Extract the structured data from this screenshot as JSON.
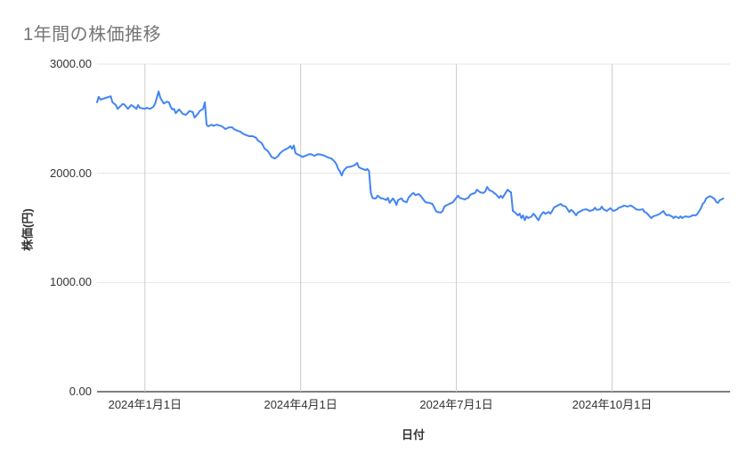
{
  "chart_data": {
    "type": "line",
    "title": "1年間の株価推移",
    "xlabel": "日付",
    "ylabel": "株価(円)",
    "ylim": [
      0,
      3000
    ],
    "xlim": [
      0,
      370
    ],
    "grid": true,
    "legend": false,
    "x_encoding": "days along the axis; 0 = left edge of plot (≈ early Dec 2023), 370 = right edge (≈ early Dec 2024)",
    "y_ticks": [
      {
        "value": 3000,
        "label": "3000.00"
      },
      {
        "value": 2000,
        "label": "2000.00"
      },
      {
        "value": 1000,
        "label": "1000.00"
      },
      {
        "value": 0,
        "label": "0.00"
      }
    ],
    "x_ticks": [
      {
        "day": 28,
        "label": "2024年1月1日"
      },
      {
        "day": 119,
        "label": "2024年4月1日"
      },
      {
        "day": 210,
        "label": "2024年7月1日"
      },
      {
        "day": 301,
        "label": "2024年10月1日"
      }
    ],
    "colors": {
      "line": "#4285f4",
      "title_text": "#757575",
      "tick_text": "#333333",
      "gridline_h": "#e4e4e4",
      "gridline_v": "#cccccc",
      "baseline": "#555555"
    },
    "series": [
      {
        "name": "株価",
        "color": "#4285f4",
        "points": [
          [
            0,
            2650
          ],
          [
            1,
            2700
          ],
          [
            2,
            2675
          ],
          [
            5,
            2690
          ],
          [
            8,
            2705
          ],
          [
            9,
            2650
          ],
          [
            11,
            2625
          ],
          [
            12,
            2590
          ],
          [
            15,
            2635
          ],
          [
            16,
            2630
          ],
          [
            18,
            2590
          ],
          [
            20,
            2625
          ],
          [
            21,
            2615
          ],
          [
            23,
            2590
          ],
          [
            24,
            2625
          ],
          [
            25,
            2600
          ],
          [
            28,
            2590
          ],
          [
            29,
            2600
          ],
          [
            31,
            2590
          ],
          [
            33,
            2610
          ],
          [
            34,
            2640
          ],
          [
            36,
            2750
          ],
          [
            37,
            2690
          ],
          [
            38,
            2665
          ],
          [
            39,
            2640
          ],
          [
            41,
            2655
          ],
          [
            42,
            2650
          ],
          [
            43,
            2610
          ],
          [
            44,
            2585
          ],
          [
            45,
            2590
          ],
          [
            46,
            2550
          ],
          [
            48,
            2585
          ],
          [
            50,
            2545
          ],
          [
            52,
            2535
          ],
          [
            54,
            2570
          ],
          [
            56,
            2560
          ],
          [
            57,
            2510
          ],
          [
            59,
            2545
          ],
          [
            60,
            2570
          ],
          [
            62,
            2590
          ],
          [
            63,
            2650
          ],
          [
            64,
            2445
          ],
          [
            65,
            2430
          ],
          [
            67,
            2445
          ],
          [
            68,
            2435
          ],
          [
            70,
            2445
          ],
          [
            72,
            2435
          ],
          [
            73,
            2430
          ],
          [
            75,
            2405
          ],
          [
            77,
            2420
          ],
          [
            79,
            2420
          ],
          [
            80,
            2405
          ],
          [
            82,
            2390
          ],
          [
            84,
            2380
          ],
          [
            85,
            2365
          ],
          [
            87,
            2350
          ],
          [
            89,
            2340
          ],
          [
            91,
            2340
          ],
          [
            93,
            2325
          ],
          [
            94,
            2300
          ],
          [
            96,
            2280
          ],
          [
            97,
            2255
          ],
          [
            98,
            2225
          ],
          [
            99,
            2215
          ],
          [
            100,
            2200
          ],
          [
            102,
            2150
          ],
          [
            104,
            2135
          ],
          [
            106,
            2160
          ],
          [
            107,
            2185
          ],
          [
            109,
            2210
          ],
          [
            111,
            2225
          ],
          [
            112,
            2235
          ],
          [
            113,
            2250
          ],
          [
            114,
            2225
          ],
          [
            115,
            2255
          ],
          [
            116,
            2185
          ],
          [
            117,
            2175
          ],
          [
            119,
            2160
          ],
          [
            120,
            2150
          ],
          [
            122,
            2160
          ],
          [
            124,
            2175
          ],
          [
            125,
            2175
          ],
          [
            127,
            2160
          ],
          [
            129,
            2175
          ],
          [
            131,
            2170
          ],
          [
            133,
            2160
          ],
          [
            135,
            2145
          ],
          [
            137,
            2135
          ],
          [
            139,
            2105
          ],
          [
            140,
            2080
          ],
          [
            141,
            2040
          ],
          [
            142,
            2015
          ],
          [
            143,
            1980
          ],
          [
            144,
            2020
          ],
          [
            145,
            2040
          ],
          [
            146,
            2055
          ],
          [
            148,
            2060
          ],
          [
            150,
            2070
          ],
          [
            151,
            2080
          ],
          [
            152,
            2095
          ],
          [
            153,
            2055
          ],
          [
            155,
            2040
          ],
          [
            157,
            2030
          ],
          [
            158,
            2040
          ],
          [
            159,
            2020
          ],
          [
            160,
            1820
          ],
          [
            161,
            1775
          ],
          [
            162,
            1770
          ],
          [
            163,
            1770
          ],
          [
            164,
            1795
          ],
          [
            166,
            1770
          ],
          [
            167,
            1770
          ],
          [
            169,
            1755
          ],
          [
            170,
            1775
          ],
          [
            171,
            1730
          ],
          [
            173,
            1770
          ],
          [
            174,
            1745
          ],
          [
            175,
            1710
          ],
          [
            176,
            1755
          ],
          [
            178,
            1770
          ],
          [
            179,
            1745
          ],
          [
            181,
            1735
          ],
          [
            182,
            1775
          ],
          [
            184,
            1810
          ],
          [
            185,
            1820
          ],
          [
            186,
            1800
          ],
          [
            188,
            1810
          ],
          [
            189,
            1795
          ],
          [
            191,
            1755
          ],
          [
            192,
            1735
          ],
          [
            194,
            1730
          ],
          [
            196,
            1720
          ],
          [
            197,
            1690
          ],
          [
            198,
            1655
          ],
          [
            199,
            1645
          ],
          [
            201,
            1640
          ],
          [
            202,
            1655
          ],
          [
            203,
            1695
          ],
          [
            204,
            1705
          ],
          [
            206,
            1720
          ],
          [
            208,
            1735
          ],
          [
            209,
            1755
          ],
          [
            210,
            1775
          ],
          [
            211,
            1795
          ],
          [
            212,
            1775
          ],
          [
            213,
            1770
          ],
          [
            215,
            1760
          ],
          [
            216,
            1770
          ],
          [
            217,
            1775
          ],
          [
            218,
            1800
          ],
          [
            219,
            1810
          ],
          [
            221,
            1820
          ],
          [
            222,
            1850
          ],
          [
            224,
            1825
          ],
          [
            226,
            1820
          ],
          [
            227,
            1835
          ],
          [
            228,
            1875
          ],
          [
            229,
            1850
          ],
          [
            230,
            1840
          ],
          [
            231,
            1835
          ],
          [
            232,
            1820
          ],
          [
            233,
            1810
          ],
          [
            235,
            1775
          ],
          [
            236,
            1795
          ],
          [
            237,
            1775
          ],
          [
            238,
            1800
          ],
          [
            240,
            1850
          ],
          [
            241,
            1835
          ],
          [
            242,
            1825
          ],
          [
            243,
            1655
          ],
          [
            244,
            1645
          ],
          [
            245,
            1630
          ],
          [
            246,
            1615
          ],
          [
            247,
            1630
          ],
          [
            248,
            1590
          ],
          [
            249,
            1615
          ],
          [
            250,
            1570
          ],
          [
            251,
            1605
          ],
          [
            252,
            1590
          ],
          [
            254,
            1605
          ],
          [
            255,
            1630
          ],
          [
            256,
            1615
          ],
          [
            257,
            1590
          ],
          [
            258,
            1570
          ],
          [
            259,
            1605
          ],
          [
            260,
            1630
          ],
          [
            261,
            1645
          ],
          [
            262,
            1630
          ],
          [
            264,
            1645
          ],
          [
            265,
            1630
          ],
          [
            266,
            1655
          ],
          [
            267,
            1685
          ],
          [
            268,
            1695
          ],
          [
            270,
            1710
          ],
          [
            271,
            1720
          ],
          [
            272,
            1705
          ],
          [
            274,
            1695
          ],
          [
            275,
            1670
          ],
          [
            276,
            1645
          ],
          [
            277,
            1665
          ],
          [
            278,
            1655
          ],
          [
            280,
            1615
          ],
          [
            281,
            1640
          ],
          [
            283,
            1655
          ],
          [
            284,
            1665
          ],
          [
            286,
            1670
          ],
          [
            288,
            1655
          ],
          [
            290,
            1665
          ],
          [
            291,
            1685
          ],
          [
            292,
            1665
          ],
          [
            294,
            1670
          ],
          [
            295,
            1695
          ],
          [
            296,
            1670
          ],
          [
            298,
            1655
          ],
          [
            300,
            1680
          ],
          [
            301,
            1665
          ],
          [
            302,
            1655
          ],
          [
            304,
            1670
          ],
          [
            305,
            1685
          ],
          [
            307,
            1695
          ],
          [
            308,
            1705
          ],
          [
            310,
            1695
          ],
          [
            312,
            1705
          ],
          [
            314,
            1685
          ],
          [
            315,
            1670
          ],
          [
            317,
            1665
          ],
          [
            319,
            1670
          ],
          [
            320,
            1645
          ],
          [
            321,
            1640
          ],
          [
            323,
            1605
          ],
          [
            324,
            1590
          ],
          [
            325,
            1605
          ],
          [
            327,
            1615
          ],
          [
            329,
            1630
          ],
          [
            331,
            1655
          ],
          [
            332,
            1630
          ],
          [
            333,
            1615
          ],
          [
            334,
            1620
          ],
          [
            336,
            1605
          ],
          [
            337,
            1590
          ],
          [
            338,
            1605
          ],
          [
            340,
            1590
          ],
          [
            341,
            1605
          ],
          [
            342,
            1590
          ],
          [
            343,
            1600
          ],
          [
            344,
            1605
          ],
          [
            346,
            1600
          ],
          [
            347,
            1605
          ],
          [
            348,
            1615
          ],
          [
            350,
            1615
          ],
          [
            351,
            1630
          ],
          [
            352,
            1655
          ],
          [
            353,
            1680
          ],
          [
            354,
            1720
          ],
          [
            355,
            1735
          ],
          [
            356,
            1770
          ],
          [
            357,
            1780
          ],
          [
            358,
            1790
          ],
          [
            359,
            1785
          ],
          [
            360,
            1775
          ],
          [
            361,
            1765
          ],
          [
            362,
            1735
          ],
          [
            363,
            1730
          ],
          [
            364,
            1755
          ],
          [
            365,
            1760
          ],
          [
            366,
            1770
          ]
        ]
      }
    ]
  }
}
